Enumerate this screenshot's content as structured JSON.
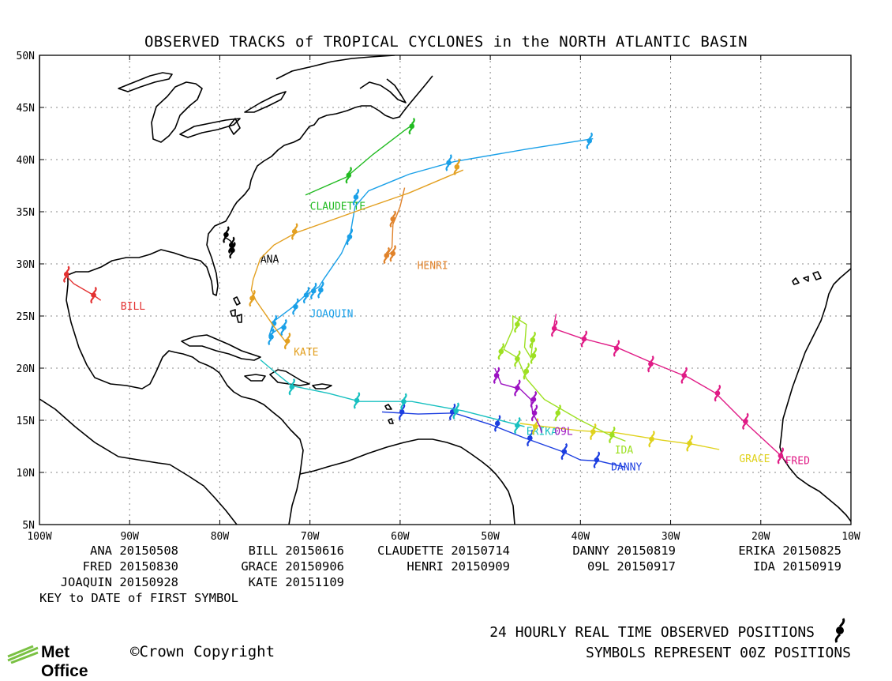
{
  "title": "OBSERVED TRACKS of TROPICAL CYCLONES in the NORTH ATLANTIC BASIN",
  "axes": {
    "lat_labels": [
      "5N",
      "10N",
      "15N",
      "20N",
      "25N",
      "30N",
      "35N",
      "40N",
      "45N",
      "50N"
    ],
    "lon_labels": [
      "100W",
      "90W",
      "80W",
      "70W",
      "60W",
      "50W",
      "40W",
      "30W",
      "20W",
      "10W"
    ]
  },
  "storms": [
    {
      "name": "ANA",
      "date": "20150508",
      "color": "#000000",
      "label_pos": [
        -75.5,
        30.1
      ],
      "track": [
        [
          -79.5,
          32.6
        ],
        [
          -78.8,
          32.2
        ],
        [
          -78.7,
          31.7
        ],
        [
          -78.6,
          31.4
        ],
        [
          -78.5,
          31.6
        ]
      ],
      "symbols": [
        [
          -79.3,
          32.8
        ],
        [
          -78.7,
          31.8
        ],
        [
          -78.6,
          31.3
        ]
      ]
    },
    {
      "name": "BILL",
      "date": "20150616",
      "color": "#e33131",
      "label_pos": [
        -91.0,
        25.6
      ],
      "track": [
        [
          -97.2,
          29.0
        ],
        [
          -96.2,
          28.1
        ],
        [
          -94.0,
          27.0
        ],
        [
          -93.2,
          26.5
        ]
      ],
      "symbols": [
        [
          -97.0,
          29.0
        ],
        [
          -94.0,
          27.0
        ]
      ]
    },
    {
      "name": "CLAUDETTE",
      "date": "20150714",
      "color": "#22bb22",
      "label_pos": [
        -70.0,
        35.2
      ],
      "track": [
        [
          -70.5,
          36.6
        ],
        [
          -66.0,
          38.3
        ],
        [
          -63.0,
          40.5
        ],
        [
          -59.5,
          42.8
        ],
        [
          -58.5,
          43.4
        ]
      ],
      "symbols": [
        [
          -65.7,
          38.5
        ],
        [
          -58.7,
          43.2
        ]
      ]
    },
    {
      "name": "DANNY",
      "date": "20150819",
      "color": "#1c3ee0",
      "label_pos": [
        -36.6,
        10.2
      ],
      "track": [
        [
          -62.0,
          15.8
        ],
        [
          -58.0,
          15.6
        ],
        [
          -54.0,
          15.7
        ],
        [
          -50.0,
          14.6
        ],
        [
          -46.2,
          13.3
        ],
        [
          -42.0,
          12.0
        ],
        [
          -40.0,
          11.2
        ],
        [
          -38.0,
          11.1
        ],
        [
          -35.0,
          10.5
        ]
      ],
      "symbols": [
        [
          -59.8,
          15.8
        ],
        [
          -54.2,
          15.8
        ],
        [
          -49.2,
          14.7
        ],
        [
          -45.6,
          13.3
        ],
        [
          -41.8,
          12.0
        ],
        [
          -38.2,
          11.2
        ]
      ]
    },
    {
      "name": "ERIKA",
      "date": "20150825",
      "color": "#17c0c0",
      "label_pos": [
        -46.0,
        13.6
      ],
      "track": [
        [
          -46.2,
          14.4
        ],
        [
          -53.0,
          15.9
        ],
        [
          -58.7,
          16.8
        ],
        [
          -64.5,
          16.8
        ],
        [
          -68.0,
          17.6
        ],
        [
          -72.0,
          18.3
        ],
        [
          -73.3,
          19.2
        ],
        [
          -75.5,
          20.8
        ]
      ],
      "symbols": [
        [
          -47.0,
          14.5
        ],
        [
          -53.8,
          15.9
        ],
        [
          -59.6,
          16.8
        ],
        [
          -64.8,
          16.9
        ],
        [
          -72.0,
          18.2
        ]
      ]
    },
    {
      "name": "FRED",
      "date": "20150830",
      "color": "#e01b86",
      "label_pos": [
        -17.3,
        10.8
      ],
      "track": [
        [
          -17.0,
          10.9
        ],
        [
          -18.0,
          11.8
        ],
        [
          -22.0,
          15.0
        ],
        [
          -25.0,
          17.6
        ],
        [
          -28.0,
          19.1
        ],
        [
          -32.0,
          20.5
        ],
        [
          -36.0,
          22.0
        ],
        [
          -40.0,
          22.9
        ],
        [
          -43.0,
          23.8
        ],
        [
          -42.7,
          25.2
        ]
      ],
      "symbols": [
        [
          -17.8,
          11.6
        ],
        [
          -21.7,
          14.9
        ],
        [
          -24.8,
          17.6
        ],
        [
          -28.5,
          19.3
        ],
        [
          -32.2,
          20.4
        ],
        [
          -36.0,
          21.9
        ],
        [
          -39.6,
          22.8
        ],
        [
          -42.9,
          23.8
        ]
      ]
    },
    {
      "name": "GRACE",
      "date": "20150906",
      "color": "#e0d21c",
      "label_pos": [
        -22.4,
        11.0
      ],
      "track": [
        [
          -24.6,
          12.2
        ],
        [
          -27.5,
          12.7
        ],
        [
          -31.0,
          13.1
        ],
        [
          -36.0,
          13.8
        ],
        [
          -40.0,
          14.0
        ],
        [
          -44.0,
          14.4
        ],
        [
          -46.7,
          14.7
        ]
      ],
      "symbols": [
        [
          -27.9,
          12.8
        ],
        [
          -32.1,
          13.2
        ],
        [
          -38.6,
          13.9
        ],
        [
          -45.0,
          14.4
        ]
      ]
    },
    {
      "name": "HENRI",
      "date": "20150909",
      "color": "#e0822a",
      "label_pos": [
        -58.1,
        29.5
      ],
      "track": [
        [
          -60.8,
          31.2
        ],
        [
          -61.5,
          30.8
        ],
        [
          -60.9,
          31.6
        ],
        [
          -60.8,
          33.8
        ],
        [
          -60.4,
          34.6
        ],
        [
          -60.0,
          35.5
        ],
        [
          -59.5,
          37.3
        ]
      ],
      "symbols": [
        [
          -61.5,
          30.8
        ],
        [
          -60.8,
          31.0
        ],
        [
          -60.8,
          34.3
        ]
      ]
    },
    {
      "name": "09L",
      "date": "20150917",
      "color": "#9c12c2",
      "label_pos": [
        -42.9,
        13.6
      ],
      "track": [
        [
          -49.5,
          20.0
        ],
        [
          -48.8,
          18.5
        ],
        [
          -46.7,
          18.0
        ],
        [
          -45.5,
          17.0
        ],
        [
          -45.3,
          15.7
        ],
        [
          -44.5,
          14.4
        ],
        [
          -44.3,
          13.8
        ]
      ],
      "symbols": [
        [
          -49.3,
          19.3
        ],
        [
          -47.0,
          18.1
        ],
        [
          -45.2,
          17.0
        ],
        [
          -45.1,
          15.7
        ]
      ]
    },
    {
      "name": "IDA",
      "date": "20150919",
      "color": "#9de021",
      "label_pos": [
        -36.2,
        11.8
      ],
      "track": [
        [
          -35.0,
          13.0
        ],
        [
          -37.0,
          13.7
        ],
        [
          -40.0,
          15.0
        ],
        [
          -44.0,
          17.0
        ],
        [
          -46.0,
          19.0
        ],
        [
          -47.0,
          21.0
        ],
        [
          -48.5,
          21.8
        ],
        [
          -47.5,
          23.8
        ],
        [
          -47.5,
          25.0
        ],
        [
          -46.0,
          24.2
        ],
        [
          -46.2,
          22.0
        ],
        [
          -45.5,
          21.0
        ],
        [
          -45.3,
          22.5
        ]
      ],
      "symbols": [
        [
          -36.5,
          13.6
        ],
        [
          -42.5,
          15.7
        ],
        [
          -46.0,
          19.7
        ],
        [
          -48.8,
          21.6
        ],
        [
          -47.0,
          20.9
        ],
        [
          -47.0,
          24.2
        ],
        [
          -45.2,
          21.2
        ],
        [
          -45.3,
          22.7
        ]
      ]
    },
    {
      "name": "JOAQUIN",
      "date": "20150928",
      "color": "#1aa0e8",
      "label_pos": [
        -70.0,
        24.9
      ],
      "track": [
        [
          -73.0,
          24.0
        ],
        [
          -74.5,
          23.2
        ],
        [
          -74.0,
          24.5
        ],
        [
          -72.0,
          25.8
        ],
        [
          -70.5,
          27.0
        ],
        [
          -69.0,
          27.8
        ],
        [
          -68.5,
          28.5
        ],
        [
          -66.5,
          31.0
        ],
        [
          -65.5,
          33.0
        ],
        [
          -65.0,
          35.5
        ],
        [
          -63.5,
          37.0
        ],
        [
          -59.0,
          38.6
        ],
        [
          -54.0,
          39.8
        ],
        [
          -46.0,
          41.0
        ],
        [
          -38.6,
          42.0
        ]
      ],
      "symbols": [
        [
          -74.3,
          23.0
        ],
        [
          -74.0,
          24.3
        ],
        [
          -72.9,
          23.9
        ],
        [
          -71.6,
          25.9
        ],
        [
          -70.4,
          27.0
        ],
        [
          -69.6,
          27.4
        ],
        [
          -68.8,
          27.5
        ],
        [
          -65.6,
          32.6
        ],
        [
          -64.9,
          36.4
        ],
        [
          -54.6,
          39.7
        ],
        [
          -39.0,
          41.8
        ]
      ]
    },
    {
      "name": "KATE",
      "date": "20151109",
      "color": "#e3a021",
      "label_pos": [
        -71.8,
        21.2
      ],
      "track": [
        [
          -72.5,
          22.3
        ],
        [
          -74.0,
          24.0
        ],
        [
          -76.0,
          26.5
        ],
        [
          -76.5,
          27.5
        ],
        [
          -76.3,
          28.5
        ],
        [
          -75.5,
          30.5
        ],
        [
          -74.0,
          31.8
        ],
        [
          -71.5,
          33.0
        ],
        [
          -65.0,
          35.0
        ],
        [
          -59.0,
          36.8
        ],
        [
          -53.0,
          39.0
        ]
      ],
      "symbols": [
        [
          -72.5,
          22.6
        ],
        [
          -76.4,
          26.7
        ],
        [
          -71.7,
          33.1
        ],
        [
          -53.7,
          39.3
        ]
      ]
    }
  ],
  "key": {
    "rows": [
      [
        "ANA 20150508",
        "BILL 20150616",
        "CLAUDETTE 20150714",
        "DANNY 20150819",
        "ERIKA 20150825"
      ],
      [
        "FRED 20150830",
        "GRACE 20150906",
        "HENRI 20150909",
        "09L 20150917",
        "IDA 20150919"
      ],
      [
        "JOAQUIN 20150928",
        "KATE 20151109"
      ]
    ],
    "caption": "KEY to DATE of FIRST SYMBOL"
  },
  "footer": {
    "logo": "Met Office",
    "copyright": "©Crown Copyright",
    "line1": "24 HOURLY REAL TIME OBSERVED POSITIONS",
    "line2": "SYMBOLS REPRESENT 00Z POSITIONS"
  }
}
